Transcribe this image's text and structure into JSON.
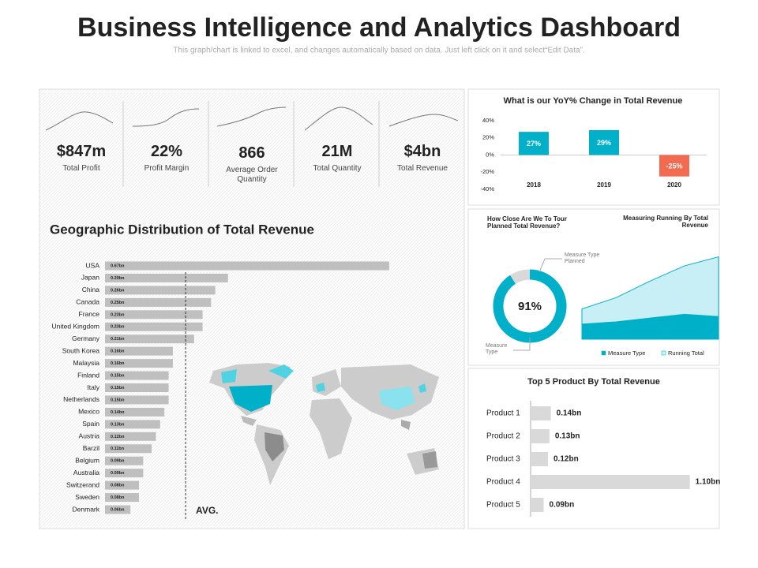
{
  "title": "Business Intelligence and Analytics Dashboard",
  "subtitle": "This graph/chart is linked to excel, and changes automatically based on data. Just left click on it and select“Edit Data”.",
  "kpis": [
    {
      "value": "$847m",
      "label": "Total Profit"
    },
    {
      "value": "22%",
      "label": "Profit Margin"
    },
    {
      "value": "866",
      "label": "Average Order Quantity"
    },
    {
      "value": "21M",
      "label": "Total Quantity"
    },
    {
      "value": "$4bn",
      "label": "Total Revenue"
    }
  ],
  "chart_data": [
    {
      "type": "hbar",
      "title": "Geographic Distribution of Total Revenue",
      "categories": [
        "USA",
        "Japan",
        "China",
        "Canada",
        "France",
        "United Kingdom",
        "Germany",
        "South Korea",
        "Malaysia",
        "Finland",
        "Italy",
        "Netherlands",
        "Mexico",
        "Spain",
        "Austria",
        "Barzil",
        "Belgium",
        "Australia",
        "Switzerand",
        "Sweden",
        "Denmark"
      ],
      "values": [
        0.67,
        0.29,
        0.26,
        0.25,
        0.23,
        0.23,
        0.21,
        0.16,
        0.16,
        0.15,
        0.15,
        0.15,
        0.14,
        0.13,
        0.12,
        0.11,
        0.09,
        0.09,
        0.08,
        0.08,
        0.06
      ],
      "value_labels": [
        "0.67bn",
        "0.29bn",
        "0.26bn",
        "0.25bn",
        "0.23bn",
        "0.23bn",
        "0.21bn",
        "0.16bn",
        "0.16bn",
        "0.15bn",
        "0.15bn",
        "0.15bn",
        "0.14bn",
        "0.13bn",
        "0.12bn",
        "0.11bn",
        "0.09bn",
        "0.09bn",
        "0.08bn",
        "0.08bn",
        "0.06bn"
      ],
      "color": "#bfbfbf",
      "xlim": [
        0,
        0.7
      ],
      "average": {
        "value": 0.19,
        "label": "AVG."
      }
    },
    {
      "type": "bar",
      "title": "What is our YoY%  Change in Total Revenue",
      "categories": [
        "2018",
        "2019",
        "2020"
      ],
      "values": [
        27,
        29,
        -25
      ],
      "value_labels": [
        "27%",
        "29%",
        "-25%"
      ],
      "colors": [
        "#00b0c8",
        "#00b0c8",
        "#f26b50"
      ],
      "ylim": [
        -40,
        40
      ],
      "yticks": [
        {
          "value": 40,
          "label": "40%"
        },
        {
          "value": 20,
          "label": "20%"
        },
        {
          "value": 0,
          "label": "0%"
        },
        {
          "value": -20,
          "label": "-20%"
        },
        {
          "value": -40,
          "label": "-40%"
        }
      ]
    },
    {
      "type": "donut",
      "title": "How Close Are We To Tour Planned Total Revenue?",
      "categories": [
        "Measure Type",
        "Measure Type Planned"
      ],
      "values": [
        91,
        9
      ],
      "value_labels": [
        "91%",
        null
      ],
      "colors": [
        "#00b0c8",
        "#d9d9d9"
      ]
    },
    {
      "type": "area",
      "title": "Measuring Running By Total Revenue",
      "ylim": [
        0,
        120
      ],
      "series": [
        {
          "name": "Measure Type",
          "color": "#00b0c8",
          "values": [
            20,
            23,
            28,
            33,
            30
          ]
        },
        {
          "name": "Running Total",
          "color": "#c9eff6",
          "values": [
            40,
            55,
            77,
            97,
            109
          ]
        }
      ]
    },
    {
      "type": "hbar",
      "title": "Top 5 Product By Total Revenue",
      "categories": [
        "Product 1",
        "Product 2",
        "Product 3",
        "Product 4",
        "Product 5"
      ],
      "values": [
        0.14,
        0.13,
        0.12,
        1.1,
        0.09
      ],
      "value_labels": [
        "0.14bn",
        "0.13bn",
        "0.12bn",
        "1.10bn",
        "0.09bn"
      ],
      "color": "#d9d9d9",
      "xlim": [
        0,
        1.2
      ]
    }
  ]
}
